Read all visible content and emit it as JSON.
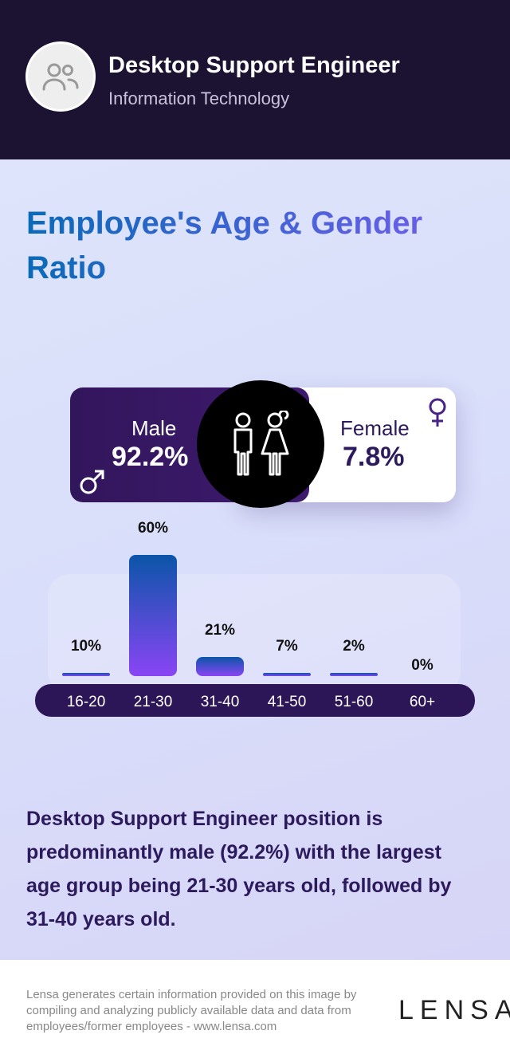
{
  "header": {
    "job_title": "Desktop Support Engineer",
    "department": "Information Technology",
    "avatar_icon": "users-icon"
  },
  "title": "Employee's Age & Gender Ratio",
  "gender": {
    "male_label": "Male",
    "male_value": "92.2%",
    "female_label": "Female",
    "female_value": "7.8%"
  },
  "chart_data": {
    "type": "bar",
    "categories": [
      "16-20",
      "21-30",
      "31-40",
      "41-50",
      "51-60",
      "60+"
    ],
    "values": [
      10,
      60,
      21,
      7,
      2,
      0
    ],
    "value_labels": [
      "10%",
      "60%",
      "21%",
      "7%",
      "2%",
      "0%"
    ],
    "unit": "%"
  },
  "summary": "Desktop Support Engineer position is predominantly male (92.2%) with the largest age group being 21-30 years old, followed by 31-40 years old.",
  "footer": {
    "disclaimer": "Lensa generates certain information provided on this image by compiling and analyzing publicly available data and data from employees/former employees - www.lensa.com",
    "logo": "LENSA"
  }
}
